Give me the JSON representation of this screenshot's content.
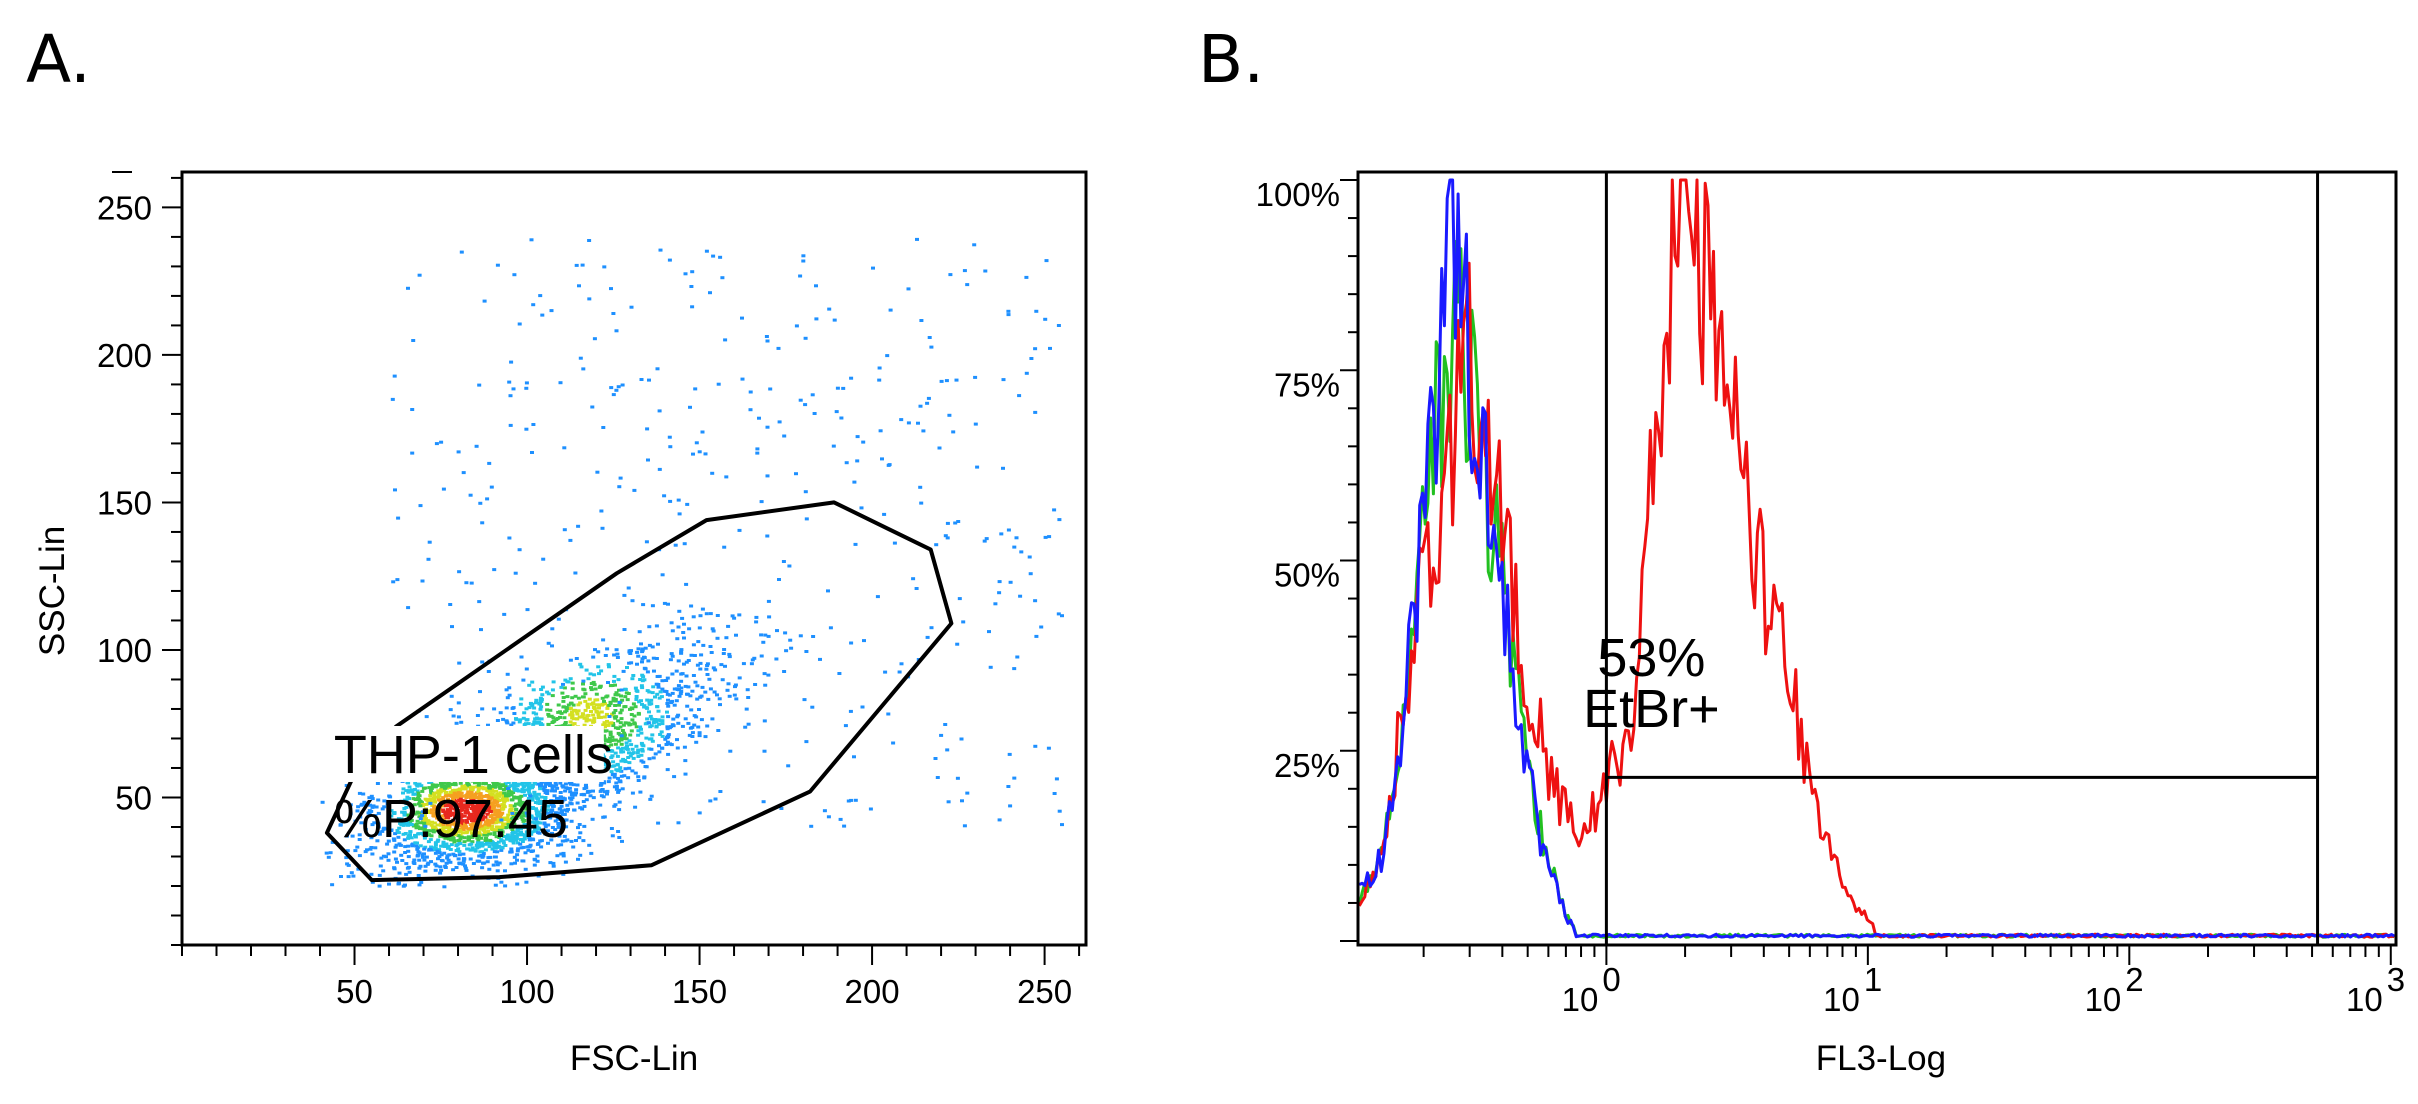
{
  "chart_data": [
    {
      "panel": "A.",
      "type": "scatter",
      "subtype": "density-dot-plot",
      "xlabel": "FSC-Lin",
      "ylabel": "SSC-Lin",
      "xlim": [
        0,
        262
      ],
      "ylim": [
        0,
        262
      ],
      "xticks": [
        50,
        100,
        150,
        200,
        250
      ],
      "yticks": [
        50,
        100,
        150,
        200,
        250
      ],
      "gate": {
        "name": "THP-1 cells",
        "stat_label": "%P:97.45",
        "polygon": [
          [
            42,
            38
          ],
          [
            55,
            22
          ],
          [
            92,
            23
          ],
          [
            136,
            27
          ],
          [
            182,
            52
          ],
          [
            223,
            109
          ],
          [
            217,
            134
          ],
          [
            189,
            150
          ],
          [
            152,
            144
          ],
          [
            126,
            126
          ],
          [
            62,
            74
          ],
          [
            50,
            58
          ]
        ]
      },
      "population": {
        "center": [
          110,
          60
        ],
        "core": [
          85,
          45
        ],
        "color_scale": [
          "#1e90ff",
          "#22c4e8",
          "#3fc84a",
          "#d4e020",
          "#f5a020",
          "#e8281e"
        ]
      }
    },
    {
      "panel": "B.",
      "type": "line",
      "subtype": "histogram-overlay",
      "xlabel": "FL3-Log",
      "ylabel": "",
      "xscale": "log",
      "xlim": [
        -0.95,
        3.02
      ],
      "ylim": [
        0,
        100
      ],
      "xtick_labels": [
        {
          "base": "10",
          "exp": "0",
          "value": 0
        },
        {
          "base": "10",
          "exp": "1",
          "value": 1
        },
        {
          "base": "10",
          "exp": "2",
          "value": 2
        },
        {
          "base": "10",
          "exp": "3",
          "value": 3
        }
      ],
      "ytick_labels": [
        "25%",
        "50%",
        "75%",
        "100%"
      ],
      "ytick_values": [
        25,
        50,
        75,
        100
      ],
      "marker": {
        "label": "53%",
        "sublabel": "EtBr+",
        "range_log": [
          0.0,
          2.72
        ],
        "height_pct": 21.5
      },
      "series": [
        {
          "name": "green",
          "color": "#22c020",
          "peak_log": -0.55,
          "peak_pct": 85,
          "x": [
            -0.95,
            -0.85,
            -0.75,
            -0.65,
            -0.58,
            -0.5,
            -0.42,
            -0.35,
            -0.25,
            -0.15,
            -0.1,
            -0.05,
            0,
            0.5,
            1,
            2,
            3
          ],
          "y": [
            5,
            12,
            38,
            68,
            85,
            72,
            52,
            35,
            15,
            3,
            1,
            1,
            1,
            0.5,
            0.5,
            0.5,
            0.5
          ]
        },
        {
          "name": "blue",
          "color": "#1a1aff",
          "peak_log": -0.55,
          "peak_pct": 99,
          "x": [
            -0.95,
            -0.85,
            -0.75,
            -0.65,
            -0.58,
            -0.5,
            -0.42,
            -0.35,
            -0.25,
            -0.15,
            -0.1,
            -0.05,
            0,
            0.5,
            1,
            2,
            3
          ],
          "y": [
            6,
            12,
            38,
            70,
            99,
            72,
            52,
            35,
            12,
            3,
            1,
            0.5,
            0.5,
            0.5,
            0.5,
            0.5,
            0.5
          ]
        },
        {
          "name": "red",
          "color": "#ee1111",
          "peak_log": 0.32,
          "peak_pct": 99,
          "x": [
            -0.95,
            -0.85,
            -0.75,
            -0.62,
            -0.52,
            -0.42,
            -0.3,
            -0.2,
            -0.1,
            0,
            0.1,
            0.2,
            0.27,
            0.32,
            0.4,
            0.5,
            0.58,
            0.68,
            0.76,
            0.86,
            0.95,
            1.05,
            2,
            3
          ],
          "y": [
            5,
            12,
            38,
            62,
            80,
            60,
            35,
            20,
            13,
            21,
            28,
            72,
            95,
            99,
            82,
            64,
            49,
            40,
            23,
            12,
            5,
            1,
            0.5,
            0.5
          ]
        }
      ]
    }
  ]
}
